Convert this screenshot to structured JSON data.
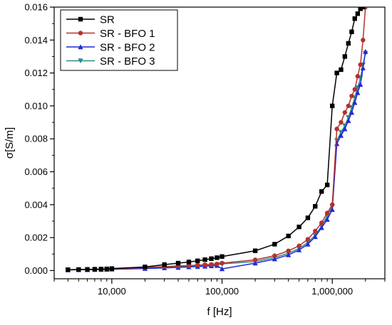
{
  "chart_data": {
    "type": "line",
    "xlabel": "f [Hz]",
    "ylabel": "σ[S/m]",
    "xscale": "log",
    "xlim": [
      3000,
      3000000
    ],
    "ylim": [
      -0.0005,
      0.016
    ],
    "xticks": [
      {
        "value": 10000,
        "label": "10,000"
      },
      {
        "value": 100000,
        "label": "100,000"
      },
      {
        "value": 1000000,
        "label": "1,000,000"
      }
    ],
    "yticks": [
      {
        "value": 0,
        "label": "0.000"
      },
      {
        "value": 0.002,
        "label": "0.002"
      },
      {
        "value": 0.004,
        "label": "0.004"
      },
      {
        "value": 0.006,
        "label": "0.006"
      },
      {
        "value": 0.008,
        "label": "0.008"
      },
      {
        "value": 0.01,
        "label": "0.010"
      },
      {
        "value": 0.012,
        "label": "0.012"
      },
      {
        "value": 0.014,
        "label": "0.014"
      },
      {
        "value": 0.016,
        "label": "0.016"
      }
    ],
    "legend_position": "top-left",
    "grid": false,
    "series": [
      {
        "name": "SR",
        "color": "#000000",
        "marker": "square",
        "points": [
          [
            4000,
            5e-05
          ],
          [
            5000,
            6e-05
          ],
          [
            6000,
            7e-05
          ],
          [
            7000,
            8e-05
          ],
          [
            8000,
            9e-05
          ],
          [
            9000,
            0.0001
          ],
          [
            10000,
            0.00012
          ],
          [
            20000,
            0.00022
          ],
          [
            30000,
            0.00036
          ],
          [
            40000,
            0.00045
          ],
          [
            50000,
            0.00052
          ],
          [
            60000,
            0.00059
          ],
          [
            70000,
            0.00066
          ],
          [
            80000,
            0.00072
          ],
          [
            90000,
            0.00078
          ],
          [
            100000,
            0.00085
          ],
          [
            200000,
            0.0012
          ],
          [
            300000,
            0.0016
          ],
          [
            400000,
            0.0021
          ],
          [
            500000,
            0.00265
          ],
          [
            600000,
            0.0032
          ],
          [
            700000,
            0.0039
          ],
          [
            800000,
            0.0048
          ],
          [
            900000,
            0.0052
          ],
          [
            1000000,
            0.01
          ],
          [
            1100000,
            0.012
          ],
          [
            1200000,
            0.0122
          ],
          [
            1300000,
            0.013
          ],
          [
            1400000,
            0.0138
          ],
          [
            1500000,
            0.0145
          ],
          [
            1600000,
            0.0153
          ],
          [
            1700000,
            0.0156
          ],
          [
            1800000,
            0.0159
          ],
          [
            1900000,
            0.016
          ]
        ]
      },
      {
        "name": "SR - BFO 1",
        "color": "#b5312b",
        "marker": "circle",
        "points": [
          [
            4000,
            5e-05
          ],
          [
            5000,
            6e-05
          ],
          [
            6000,
            6e-05
          ],
          [
            7000,
            7e-05
          ],
          [
            8000,
            8e-05
          ],
          [
            9000,
            9e-05
          ],
          [
            10000,
            0.0001
          ],
          [
            20000,
            0.00018
          ],
          [
            30000,
            0.00024
          ],
          [
            40000,
            0.00028
          ],
          [
            50000,
            0.0003
          ],
          [
            60000,
            0.00033
          ],
          [
            70000,
            0.00035
          ],
          [
            80000,
            0.00037
          ],
          [
            90000,
            0.0004
          ],
          [
            100000,
            0.00045
          ],
          [
            200000,
            0.00065
          ],
          [
            300000,
            0.0009
          ],
          [
            400000,
            0.0012
          ],
          [
            500000,
            0.0015
          ],
          [
            600000,
            0.0019
          ],
          [
            700000,
            0.0024
          ],
          [
            800000,
            0.0029
          ],
          [
            900000,
            0.0035
          ],
          [
            1000000,
            0.004
          ],
          [
            1100000,
            0.0086
          ],
          [
            1200000,
            0.009
          ],
          [
            1300000,
            0.0096
          ],
          [
            1400000,
            0.01
          ],
          [
            1500000,
            0.0106
          ],
          [
            1600000,
            0.011
          ],
          [
            1700000,
            0.0118
          ],
          [
            1800000,
            0.0125
          ],
          [
            1900000,
            0.014
          ],
          [
            2000000,
            0.016
          ]
        ]
      },
      {
        "name": "SR - BFO 2",
        "color": "#1f2bd6",
        "marker": "triangle-up",
        "points": [
          [
            4000,
            4e-05
          ],
          [
            5000,
            5e-05
          ],
          [
            6000,
            5e-05
          ],
          [
            7000,
            6e-05
          ],
          [
            8000,
            6e-05
          ],
          [
            9000,
            7e-05
          ],
          [
            10000,
            8e-05
          ],
          [
            20000,
            0.00012
          ],
          [
            30000,
            0.00016
          ],
          [
            40000,
            0.00019
          ],
          [
            50000,
            0.00022
          ],
          [
            60000,
            0.00024
          ],
          [
            70000,
            0.00026
          ],
          [
            80000,
            0.00028
          ],
          [
            90000,
            0.0003
          ],
          [
            100000,
            0.0001
          ],
          [
            200000,
            0.00045
          ],
          [
            300000,
            0.0007
          ],
          [
            400000,
            0.00095
          ],
          [
            500000,
            0.00125
          ],
          [
            600000,
            0.0016
          ],
          [
            700000,
            0.00205
          ],
          [
            800000,
            0.0026
          ],
          [
            900000,
            0.0031
          ],
          [
            1000000,
            0.0037
          ],
          [
            1100000,
            0.0077
          ],
          [
            1200000,
            0.0082
          ],
          [
            1300000,
            0.0086
          ],
          [
            1400000,
            0.0091
          ],
          [
            1500000,
            0.0096
          ],
          [
            1600000,
            0.0102
          ],
          [
            1700000,
            0.0108
          ],
          [
            1800000,
            0.0113
          ],
          [
            1900000,
            0.0123
          ],
          [
            2000000,
            0.0133
          ]
        ]
      },
      {
        "name": "SR - BFO 3",
        "color": "#2f8a8a",
        "marker": "triangle-down",
        "points": [
          [
            4000,
            4e-05
          ],
          [
            5000,
            5e-05
          ],
          [
            6000,
            5e-05
          ],
          [
            7000,
            6e-05
          ],
          [
            8000,
            7e-05
          ],
          [
            9000,
            7e-05
          ],
          [
            10000,
            8e-05
          ],
          [
            20000,
            0.00014
          ],
          [
            30000,
            0.00018
          ],
          [
            40000,
            0.00022
          ],
          [
            50000,
            0.00025
          ],
          [
            60000,
            0.00028
          ],
          [
            70000,
            0.0003
          ],
          [
            80000,
            0.00033
          ],
          [
            90000,
            0.00035
          ],
          [
            100000,
            0.0004
          ],
          [
            200000,
            0.00055
          ],
          [
            300000,
            0.0008
          ],
          [
            400000,
            0.00105
          ],
          [
            500000,
            0.00135
          ],
          [
            600000,
            0.0017
          ],
          [
            700000,
            0.00215
          ],
          [
            800000,
            0.0027
          ],
          [
            900000,
            0.0033
          ],
          [
            1000000,
            0.0039
          ],
          [
            1100000,
            0.0079
          ],
          [
            1200000,
            0.0084
          ],
          [
            1300000,
            0.0088
          ],
          [
            1400000,
            0.0093
          ],
          [
            1500000,
            0.0099
          ],
          [
            1600000,
            0.0105
          ],
          [
            1700000,
            0.0111
          ],
          [
            1800000,
            0.0117
          ],
          [
            1900000,
            0.0125
          ],
          [
            2000000,
            0.0132
          ]
        ]
      }
    ]
  }
}
